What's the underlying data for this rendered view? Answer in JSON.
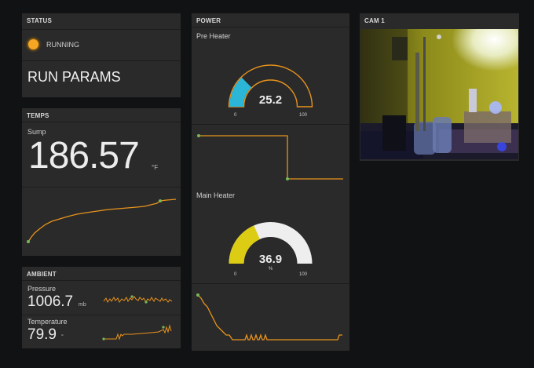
{
  "status": {
    "title": "STATUS",
    "state": "RUNNING",
    "state_color": "#f5a623",
    "run_params": "RUN PARAMS"
  },
  "temps": {
    "title": "TEMPS",
    "sump_label": "Sump",
    "sump_value": "186.57",
    "sump_unit": "°F"
  },
  "ambient": {
    "title": "AMBIENT",
    "pressure_label": "Pressure",
    "pressure_value": "1006.7",
    "pressure_unit": "mb",
    "temperature_label": "Temperature",
    "temperature_value": "79.9",
    "temperature_unit": "°"
  },
  "power": {
    "title": "POWER",
    "pre_heater": {
      "label": "Pre Heater",
      "value": "25.2",
      "fraction": 0.252,
      "min": "0",
      "max": "100",
      "color": "#2bb5d6"
    },
    "main_heater": {
      "label": "Main Heater",
      "value": "36.9",
      "fraction": 0.369,
      "unit": "%",
      "min": "0",
      "max": "100",
      "color": "#dccd14"
    }
  },
  "cam": {
    "title": "CAM 1"
  },
  "colors": {
    "accent": "#e8931c",
    "marker": "#78b85a",
    "panel": "#2a2a2a",
    "background": "#111213"
  }
}
